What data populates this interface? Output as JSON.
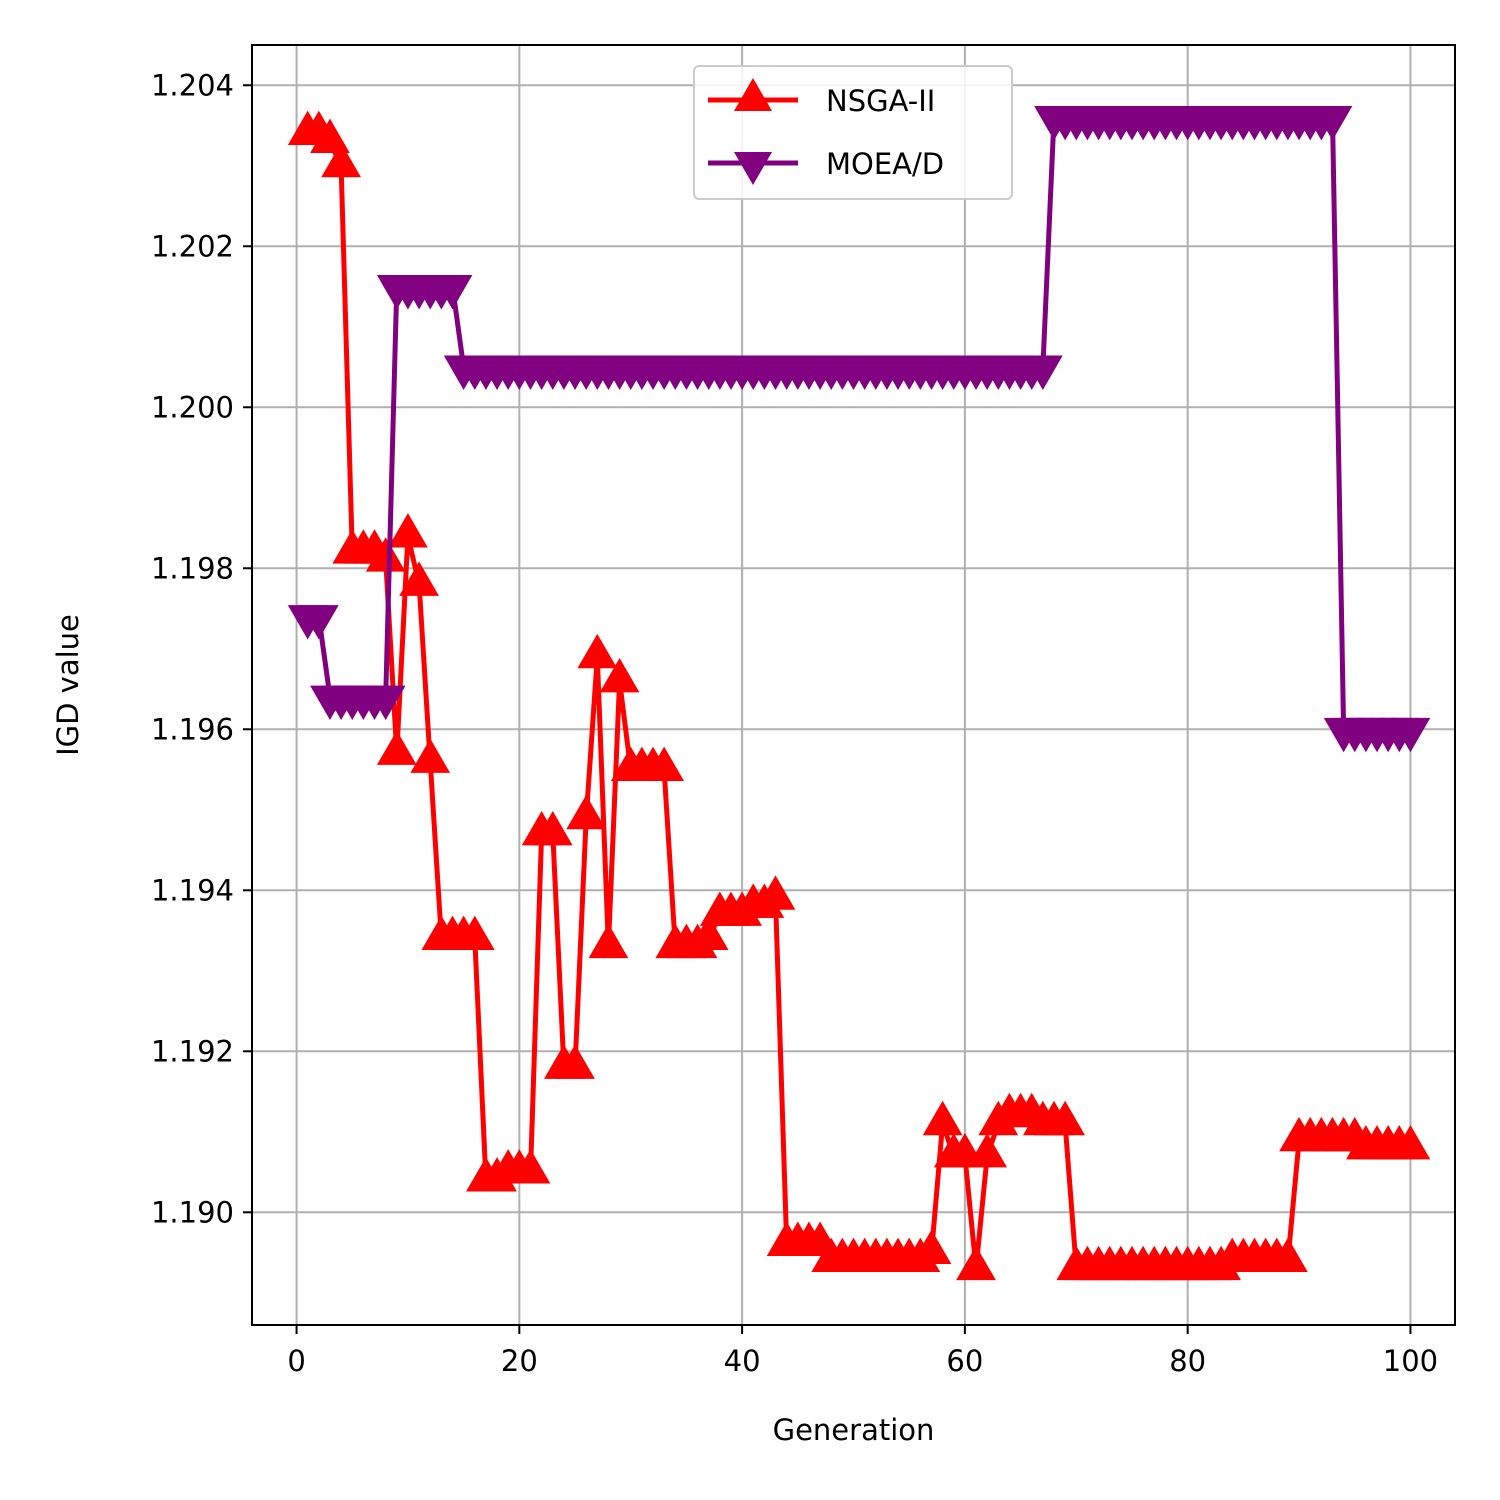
{
  "chart_data": {
    "type": "line",
    "title": "",
    "xlabel": "Generation",
    "ylabel": "IGD value",
    "xlim": [
      -4,
      104
    ],
    "ylim": [
      1.1886,
      1.2045
    ],
    "xticks": [
      0,
      20,
      40,
      60,
      80,
      100
    ],
    "yticks": [
      1.19,
      1.192,
      1.194,
      1.196,
      1.198,
      1.2,
      1.202,
      1.204
    ],
    "xtick_labels": [
      "0",
      "20",
      "40",
      "60",
      "80",
      "100"
    ],
    "ytick_labels": [
      "1.190",
      "1.192",
      "1.194",
      "1.196",
      "1.198",
      "1.200",
      "1.202",
      "1.204"
    ],
    "grid": true,
    "legend_position": "top-center",
    "series": [
      {
        "name": "NSGA-II",
        "color": "#ff0000",
        "marker": "triangle-up",
        "x": [
          1,
          2,
          3,
          4,
          5,
          6,
          7,
          8,
          9,
          10,
          11,
          12,
          13,
          14,
          15,
          16,
          17,
          18,
          19,
          20,
          21,
          22,
          23,
          24,
          25,
          26,
          27,
          28,
          29,
          30,
          31,
          32,
          33,
          34,
          35,
          36,
          37,
          38,
          39,
          40,
          41,
          42,
          43,
          44,
          45,
          46,
          47,
          48,
          49,
          50,
          51,
          52,
          53,
          54,
          55,
          56,
          57,
          58,
          59,
          60,
          61,
          62,
          63,
          64,
          65,
          66,
          67,
          68,
          69,
          70,
          71,
          72,
          73,
          74,
          75,
          76,
          77,
          78,
          79,
          80,
          81,
          82,
          83,
          84,
          85,
          86,
          87,
          88,
          89,
          90,
          91,
          92,
          93,
          94,
          95,
          96,
          97,
          98,
          99,
          100
        ],
        "y": [
          1.2034,
          1.2034,
          1.2033,
          1.203,
          1.1982,
          1.1982,
          1.1982,
          1.1981,
          1.1957,
          1.1984,
          1.1978,
          1.1956,
          1.1934,
          1.1934,
          1.1934,
          1.1934,
          1.1904,
          1.1904,
          1.1905,
          1.1905,
          1.1905,
          1.1947,
          1.1947,
          1.1918,
          1.1918,
          1.1949,
          1.1969,
          1.1933,
          1.1966,
          1.1955,
          1.1955,
          1.1955,
          1.1955,
          1.1933,
          1.1933,
          1.1933,
          1.1934,
          1.1937,
          1.1937,
          1.1937,
          1.1938,
          1.1938,
          1.1939,
          1.1896,
          1.1896,
          1.1896,
          1.1896,
          1.1894,
          1.1894,
          1.1894,
          1.1894,
          1.1894,
          1.1894,
          1.1894,
          1.1894,
          1.1894,
          1.1895,
          1.1911,
          1.1907,
          1.1907,
          1.1893,
          1.1907,
          1.1911,
          1.1912,
          1.1912,
          1.1912,
          1.1911,
          1.1911,
          1.1911,
          1.1893,
          1.1893,
          1.1893,
          1.1893,
          1.1893,
          1.1893,
          1.1893,
          1.1893,
          1.1893,
          1.1893,
          1.1893,
          1.1893,
          1.1893,
          1.1893,
          1.1894,
          1.1894,
          1.1894,
          1.1894,
          1.1894,
          1.1894,
          1.1909,
          1.1909,
          1.1909,
          1.1909,
          1.1909,
          1.1909,
          1.1908,
          1.1908,
          1.1908,
          1.1908,
          1.1908
        ]
      },
      {
        "name": "MOEA/D",
        "color": "#800080",
        "marker": "triangle-down",
        "x": [
          1,
          2,
          3,
          4,
          5,
          6,
          7,
          8,
          9,
          10,
          11,
          12,
          13,
          14,
          15,
          16,
          17,
          18,
          19,
          20,
          21,
          22,
          23,
          24,
          25,
          26,
          27,
          28,
          29,
          30,
          31,
          32,
          33,
          34,
          35,
          36,
          37,
          38,
          39,
          40,
          41,
          42,
          43,
          44,
          45,
          46,
          47,
          48,
          49,
          50,
          51,
          52,
          53,
          54,
          55,
          56,
          57,
          58,
          59,
          60,
          61,
          62,
          63,
          64,
          65,
          66,
          67,
          68,
          69,
          70,
          71,
          72,
          73,
          74,
          75,
          76,
          77,
          78,
          79,
          80,
          81,
          82,
          83,
          84,
          85,
          86,
          87,
          88,
          89,
          90,
          91,
          92,
          93,
          94,
          95,
          96,
          97,
          98,
          99,
          100
        ],
        "y": [
          1.1974,
          1.1974,
          1.1964,
          1.1964,
          1.1964,
          1.1964,
          1.1964,
          1.1964,
          1.2015,
          1.2015,
          1.2015,
          1.2015,
          1.2015,
          1.2015,
          1.2005,
          1.2005,
          1.2005,
          1.2005,
          1.2005,
          1.2005,
          1.2005,
          1.2005,
          1.2005,
          1.2005,
          1.2005,
          1.2005,
          1.2005,
          1.2005,
          1.2005,
          1.2005,
          1.2005,
          1.2005,
          1.2005,
          1.2005,
          1.2005,
          1.2005,
          1.2005,
          1.2005,
          1.2005,
          1.2005,
          1.2005,
          1.2005,
          1.2005,
          1.2005,
          1.2005,
          1.2005,
          1.2005,
          1.2005,
          1.2005,
          1.2005,
          1.2005,
          1.2005,
          1.2005,
          1.2005,
          1.2005,
          1.2005,
          1.2005,
          1.2005,
          1.2005,
          1.2005,
          1.2005,
          1.2005,
          1.2005,
          1.2005,
          1.2005,
          1.2005,
          1.2005,
          1.2036,
          1.2036,
          1.2036,
          1.2036,
          1.2036,
          1.2036,
          1.2036,
          1.2036,
          1.2036,
          1.2036,
          1.2036,
          1.2036,
          1.2036,
          1.2036,
          1.2036,
          1.2036,
          1.2036,
          1.2036,
          1.2036,
          1.2036,
          1.2036,
          1.2036,
          1.2036,
          1.2036,
          1.2036,
          1.2036,
          1.196,
          1.196,
          1.196,
          1.196,
          1.196,
          1.196,
          1.196
        ]
      }
    ]
  }
}
